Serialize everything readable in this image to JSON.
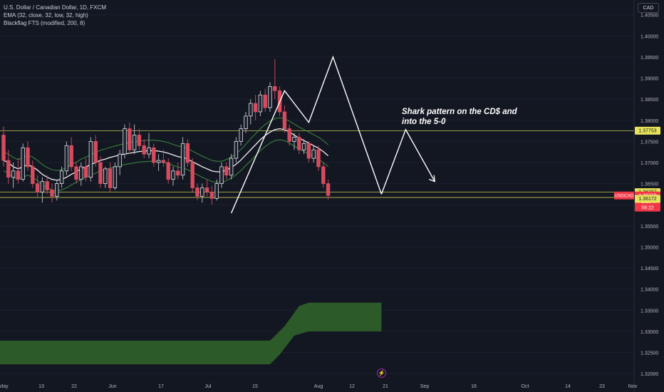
{
  "legend": {
    "symbol": "U.S. Dollar / Canadian Dollar, 1D, FXCM",
    "ema": "EMA (32, close, 32, low, 32, high)",
    "blackflag": "Blackflag FTS (modified, 200, 8)"
  },
  "currency": "CAD",
  "annotation": {
    "line1": "Shark pattern on the CD$ and",
    "line2": "into the 5-0"
  },
  "bolt_icon": "lightning-icon",
  "colors": {
    "background": "#131722",
    "up_candle": "#e0e3eb",
    "down_candle": "#d64c5e",
    "ema": "#f0f0f0",
    "band": "#3d8b3d",
    "level_line": "#e6e35a",
    "cloud": "#2e5e2a",
    "price_tag": "#f23645"
  },
  "chart_data": {
    "type": "candlestick",
    "ylim": [
      1.3185,
      1.4085
    ],
    "y_ticks": [
      "1.40500",
      "1.40000",
      "1.39500",
      "1.39000",
      "1.38500",
      "1.38000",
      "1.37500",
      "1.37000",
      "1.36500",
      "1.36000",
      "1.35500",
      "1.35000",
      "1.34500",
      "1.34000",
      "1.33500",
      "1.33000",
      "1.32500",
      "1.32000"
    ],
    "x_ticks": [
      "May",
      "13",
      "22",
      "Jun",
      "17",
      "Jul",
      "15",
      "Aug",
      "12",
      "21",
      "Sep",
      "16",
      "Oct",
      "14",
      "23",
      "Nov"
    ],
    "levels": [
      {
        "value": 1.37753,
        "label": "1.37753"
      },
      {
        "value": 1.36297,
        "label": "1.36297"
      },
      {
        "value": 1.36172,
        "label": "1.36172"
      }
    ],
    "last_price": {
      "symbol": "USDCAD",
      "value": "1.36219",
      "change": "-1.13%",
      "countdown": "58:22"
    },
    "candles": [
      [
        1.3765,
        1.3785,
        1.369,
        1.3705
      ],
      [
        1.3705,
        1.373,
        1.365,
        1.3665
      ],
      [
        1.3665,
        1.37,
        1.364,
        1.368
      ],
      [
        1.368,
        1.371,
        1.365,
        1.366
      ],
      [
        1.366,
        1.3745,
        1.3655,
        1.3735
      ],
      [
        1.3735,
        1.375,
        1.368,
        1.369
      ],
      [
        1.369,
        1.3705,
        1.364,
        1.365
      ],
      [
        1.365,
        1.367,
        1.3615,
        1.363
      ],
      [
        1.363,
        1.3665,
        1.3605,
        1.3655
      ],
      [
        1.3655,
        1.367,
        1.3625,
        1.3635
      ],
      [
        1.3635,
        1.365,
        1.3605,
        1.362
      ],
      [
        1.362,
        1.366,
        1.361,
        1.365
      ],
      [
        1.365,
        1.369,
        1.364,
        1.368
      ],
      [
        1.368,
        1.375,
        1.367,
        1.374
      ],
      [
        1.374,
        1.376,
        1.368,
        1.369
      ],
      [
        1.369,
        1.37,
        1.365,
        1.366
      ],
      [
        1.366,
        1.37,
        1.3645,
        1.369
      ],
      [
        1.369,
        1.371,
        1.3655,
        1.3665
      ],
      [
        1.3665,
        1.376,
        1.3655,
        1.375
      ],
      [
        1.375,
        1.3765,
        1.369,
        1.37
      ],
      [
        1.37,
        1.3715,
        1.364,
        1.365
      ],
      [
        1.365,
        1.369,
        1.364,
        1.3685
      ],
      [
        1.3685,
        1.37,
        1.363,
        1.364
      ],
      [
        1.364,
        1.37,
        1.3635,
        1.369
      ],
      [
        1.369,
        1.373,
        1.367,
        1.372
      ],
      [
        1.372,
        1.379,
        1.371,
        1.378
      ],
      [
        1.378,
        1.3795,
        1.372,
        1.373
      ],
      [
        1.373,
        1.379,
        1.372,
        1.3765
      ],
      [
        1.3765,
        1.378,
        1.373,
        1.374
      ],
      [
        1.374,
        1.3755,
        1.371,
        1.372
      ],
      [
        1.372,
        1.377,
        1.371,
        1.3735
      ],
      [
        1.3735,
        1.3745,
        1.369,
        1.37
      ],
      [
        1.37,
        1.372,
        1.368,
        1.3705
      ],
      [
        1.3705,
        1.373,
        1.369,
        1.37
      ],
      [
        1.37,
        1.371,
        1.365,
        1.366
      ],
      [
        1.366,
        1.369,
        1.3645,
        1.368
      ],
      [
        1.368,
        1.37,
        1.366,
        1.367
      ],
      [
        1.367,
        1.376,
        1.366,
        1.3745
      ],
      [
        1.3745,
        1.3755,
        1.369,
        1.37
      ],
      [
        1.37,
        1.371,
        1.363,
        1.364
      ],
      [
        1.364,
        1.365,
        1.361,
        1.362
      ],
      [
        1.362,
        1.365,
        1.3605,
        1.364
      ],
      [
        1.364,
        1.366,
        1.362,
        1.363
      ],
      [
        1.363,
        1.3645,
        1.36,
        1.3615
      ],
      [
        1.3615,
        1.366,
        1.361,
        1.365
      ],
      [
        1.365,
        1.37,
        1.364,
        1.369
      ],
      [
        1.369,
        1.37,
        1.366,
        1.367
      ],
      [
        1.367,
        1.372,
        1.366,
        1.371
      ],
      [
        1.371,
        1.376,
        1.37,
        1.375
      ],
      [
        1.375,
        1.379,
        1.374,
        1.378
      ],
      [
        1.378,
        1.382,
        1.377,
        1.381
      ],
      [
        1.381,
        1.385,
        1.379,
        1.384
      ],
      [
        1.384,
        1.386,
        1.38,
        1.382
      ],
      [
        1.382,
        1.387,
        1.381,
        1.386
      ],
      [
        1.386,
        1.3875,
        1.382,
        1.383
      ],
      [
        1.383,
        1.389,
        1.382,
        1.388
      ],
      [
        1.388,
        1.3945,
        1.385,
        1.387
      ],
      [
        1.387,
        1.388,
        1.381,
        1.382
      ],
      [
        1.382,
        1.3835,
        1.377,
        1.378
      ],
      [
        1.378,
        1.379,
        1.374,
        1.375
      ],
      [
        1.375,
        1.377,
        1.373,
        1.376
      ],
      [
        1.376,
        1.377,
        1.372,
        1.373
      ],
      [
        1.373,
        1.3755,
        1.372,
        1.3745
      ],
      [
        1.3745,
        1.375,
        1.37,
        1.371
      ],
      [
        1.371,
        1.374,
        1.37,
        1.373
      ],
      [
        1.373,
        1.374,
        1.368,
        1.369
      ],
      [
        1.369,
        1.37,
        1.364,
        1.365
      ],
      [
        1.365,
        1.366,
        1.3612,
        1.3622
      ]
    ],
    "ema_mid": [
      1.3705,
      1.37,
      1.369,
      1.3685,
      1.369,
      1.3695,
      1.369,
      1.3682,
      1.3672,
      1.3665,
      1.366,
      1.3658,
      1.366,
      1.3665,
      1.3672,
      1.3678,
      1.3685,
      1.369,
      1.3695,
      1.37,
      1.3705,
      1.3708,
      1.3712,
      1.3715,
      1.3718,
      1.372,
      1.3722,
      1.3724,
      1.3726,
      1.3727,
      1.3728,
      1.3728,
      1.3727,
      1.3725,
      1.3722,
      1.3718,
      1.3714,
      1.3712,
      1.3708,
      1.3702,
      1.3696,
      1.369,
      1.3685,
      1.368,
      1.3678,
      1.3678,
      1.3682,
      1.3688,
      1.3696,
      1.3706,
      1.3718,
      1.373,
      1.3742,
      1.3754,
      1.3764,
      1.3772,
      1.3778,
      1.378,
      1.3778,
      1.3772,
      1.3765,
      1.3758,
      1.3752,
      1.3746,
      1.374,
      1.3734,
      1.3726,
      1.3716
    ],
    "band_upper": [
      1.3725,
      1.372,
      1.3712,
      1.3707,
      1.3712,
      1.3717,
      1.3713,
      1.3705,
      1.3695,
      1.3688,
      1.3683,
      1.3681,
      1.3683,
      1.3688,
      1.3695,
      1.3701,
      1.3708,
      1.3713,
      1.3718,
      1.3724,
      1.3729,
      1.3732,
      1.3736,
      1.3739,
      1.3742,
      1.3745,
      1.3747,
      1.3749,
      1.3751,
      1.3752,
      1.3753,
      1.3753,
      1.3752,
      1.375,
      1.3747,
      1.3743,
      1.3739,
      1.3737,
      1.3733,
      1.3727,
      1.3721,
      1.3715,
      1.371,
      1.3705,
      1.3703,
      1.3703,
      1.3707,
      1.3713,
      1.3721,
      1.3731,
      1.3743,
      1.3756,
      1.3768,
      1.378,
      1.379,
      1.3798,
      1.3804,
      1.3806,
      1.3804,
      1.3798,
      1.3791,
      1.3784,
      1.3778,
      1.3772,
      1.3766,
      1.376,
      1.3752,
      1.3742
    ],
    "band_lower": [
      1.368,
      1.3675,
      1.3665,
      1.366,
      1.3665,
      1.367,
      1.3665,
      1.3657,
      1.3647,
      1.364,
      1.3635,
      1.3633,
      1.3635,
      1.364,
      1.3647,
      1.3653,
      1.366,
      1.3665,
      1.367,
      1.3675,
      1.368,
      1.3683,
      1.3687,
      1.369,
      1.3693,
      1.3695,
      1.3697,
      1.3699,
      1.3701,
      1.3702,
      1.3703,
      1.3703,
      1.3702,
      1.37,
      1.3697,
      1.3693,
      1.3689,
      1.3687,
      1.3683,
      1.3677,
      1.3671,
      1.3665,
      1.366,
      1.3655,
      1.3653,
      1.3653,
      1.3657,
      1.3663,
      1.3671,
      1.3681,
      1.3693,
      1.3704,
      1.3716,
      1.3728,
      1.3738,
      1.3746,
      1.3752,
      1.3754,
      1.3752,
      1.3746,
      1.3739,
      1.3732,
      1.3726,
      1.372,
      1.3714,
      1.3708,
      1.37,
      1.369
    ],
    "pattern_path": [
      [
        47,
        1.358
      ],
      [
        58,
        1.387
      ],
      [
        63,
        1.3795
      ],
      [
        68,
        1.395
      ],
      [
        78,
        1.3625
      ]
    ],
    "projection_path": [
      [
        78,
        1.3625
      ],
      [
        83,
        1.3778
      ],
      [
        89,
        1.3655
      ]
    ],
    "projection_arrow_tip": [
      89,
      1.3655
    ],
    "cloud": {
      "x_start": -1,
      "x_end": 78,
      "upper": [
        [
          -1,
          1.3278
        ],
        [
          55,
          1.3278
        ],
        [
          58,
          1.3312
        ],
        [
          61,
          1.336
        ],
        [
          63,
          1.3368
        ],
        [
          78,
          1.3368
        ]
      ],
      "lower": [
        [
          -1,
          1.3222
        ],
        [
          55,
          1.3222
        ],
        [
          57,
          1.3245
        ],
        [
          60,
          1.329
        ],
        [
          63,
          1.33
        ],
        [
          78,
          1.33
        ]
      ]
    }
  }
}
